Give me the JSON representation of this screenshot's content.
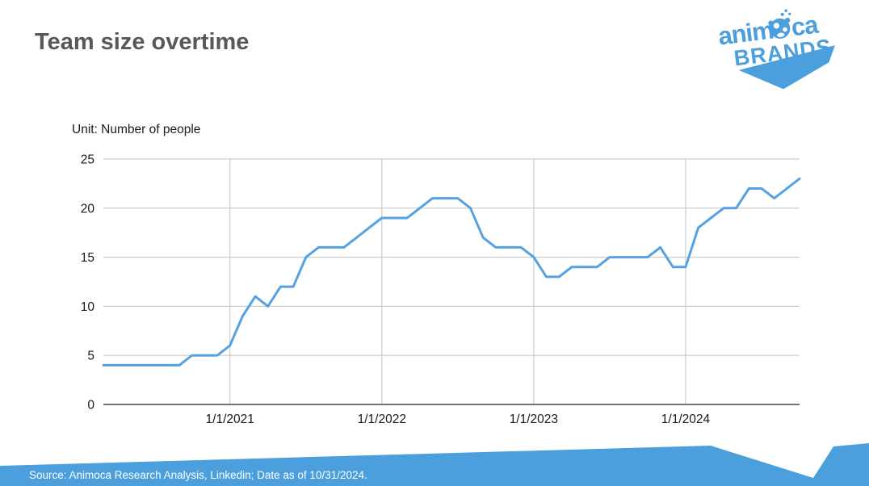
{
  "page": {
    "title": "Team size overtime",
    "unit_label": "Unit: Number of people",
    "source_text": "Source: Animoca Research Analysis, Linkedin; Date as of 10/31/2024."
  },
  "logo": {
    "word1": "anim",
    "word2": "ca",
    "word3": "BRANDS"
  },
  "colors": {
    "accent_blue": "#4C9FDD",
    "line_blue": "#55A1E2",
    "title_gray": "#585858",
    "grid_gray": "#cccccc",
    "axis_gray": "#757575",
    "label_black": "#1a1a1a",
    "footer_text": "#ffffff"
  },
  "chart_data": {
    "type": "line",
    "title": "Team size overtime",
    "unit": "Number of people",
    "x": [
      "3/2020",
      "4/2020",
      "5/2020",
      "6/2020",
      "7/2020",
      "8/2020",
      "9/2020",
      "10/2020",
      "11/2020",
      "12/2020",
      "1/2021",
      "2/2021",
      "3/2021",
      "4/2021",
      "5/2021",
      "6/2021",
      "7/2021",
      "8/2021",
      "9/2021",
      "10/2021",
      "11/2021",
      "12/2021",
      "1/2022",
      "2/2022",
      "3/2022",
      "4/2022",
      "5/2022",
      "6/2022",
      "7/2022",
      "8/2022",
      "9/2022",
      "10/2022",
      "11/2022",
      "12/2022",
      "1/2023",
      "2/2023",
      "3/2023",
      "4/2023",
      "5/2023",
      "6/2023",
      "7/2023",
      "8/2023",
      "9/2023",
      "10/2023",
      "11/2023",
      "12/2023",
      "1/2024",
      "2/2024",
      "3/2024",
      "4/2024",
      "5/2024",
      "6/2024",
      "7/2024",
      "8/2024",
      "9/2024",
      "10/2024"
    ],
    "values": [
      4,
      4,
      4,
      4,
      4,
      4,
      4,
      5,
      5,
      5,
      6,
      9,
      11,
      10,
      12,
      12,
      15,
      16,
      16,
      16,
      17,
      18,
      19,
      19,
      19,
      20,
      21,
      21,
      21,
      20,
      17,
      16,
      16,
      16,
      15,
      13,
      13,
      14,
      14,
      14,
      15,
      15,
      15,
      15,
      16,
      14,
      14,
      18,
      19,
      20,
      20,
      22,
      22,
      21,
      22,
      23
    ],
    "x_tick_labels": [
      "1/1/2021",
      "1/1/2022",
      "1/1/2023",
      "1/1/2024"
    ],
    "y_ticks": [
      0,
      5,
      10,
      15,
      20,
      25
    ],
    "ylim": [
      0,
      25
    ],
    "grid": true,
    "legend": "none",
    "line_color": "#55A1E2"
  }
}
